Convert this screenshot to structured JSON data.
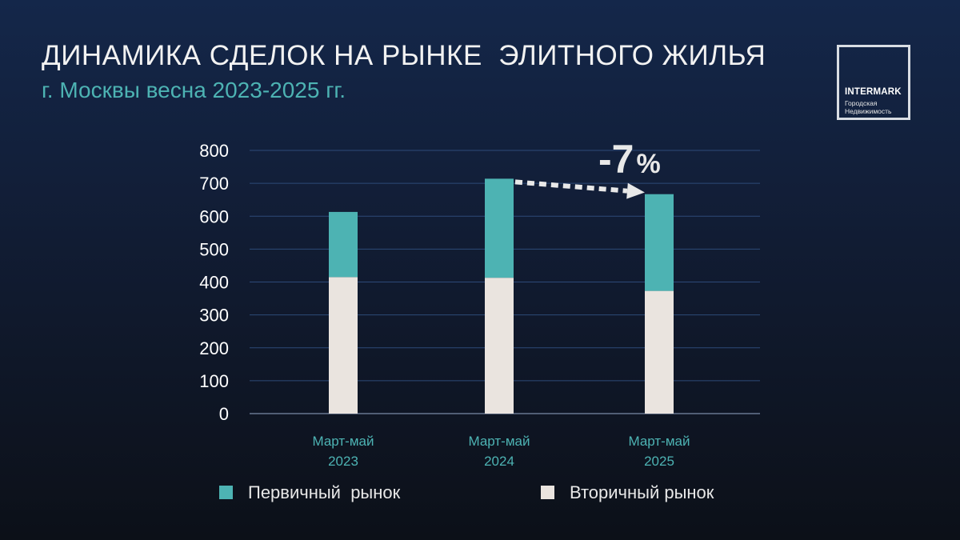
{
  "header": {
    "title": "ДИНАМИКА СДЕЛОК НА РЫНКЕ  ЭЛИТНОГО ЖИЛЬЯ",
    "subtitle": "г. Москвы весна 2023-2025 гг."
  },
  "logo": {
    "brand": "INTERMARK",
    "tagline": "Городская Недвижимость"
  },
  "annotation": {
    "number": "-7",
    "percent": "%"
  },
  "colors": {
    "primary_market": "#4db3b3",
    "secondary_market": "#eae4df",
    "grid": "#2d4a78",
    "axis_label": "#4db3b3",
    "arrow": "#e8e8e8"
  },
  "chart_data": {
    "type": "bar",
    "stacked": true,
    "categories": [
      [
        "Март-май",
        "2023"
      ],
      [
        "Март-май",
        "2024"
      ],
      [
        "Март-май",
        "2025"
      ]
    ],
    "series": [
      {
        "name": "Вторичный рынок",
        "values": [
          415,
          413,
          373
        ]
      },
      {
        "name": "Первичный  рынок",
        "values": [
          198,
          301,
          294
        ]
      }
    ],
    "totals": [
      613,
      714,
      667
    ],
    "ylim": [
      0,
      800
    ],
    "yticks": [
      "0",
      "100",
      "200",
      "300",
      "400",
      "500",
      "600",
      "700",
      "800"
    ],
    "grid": true,
    "legend": {
      "position": "bottom",
      "entries": [
        "Первичный  рынок",
        "Вторичный рынок"
      ]
    }
  }
}
